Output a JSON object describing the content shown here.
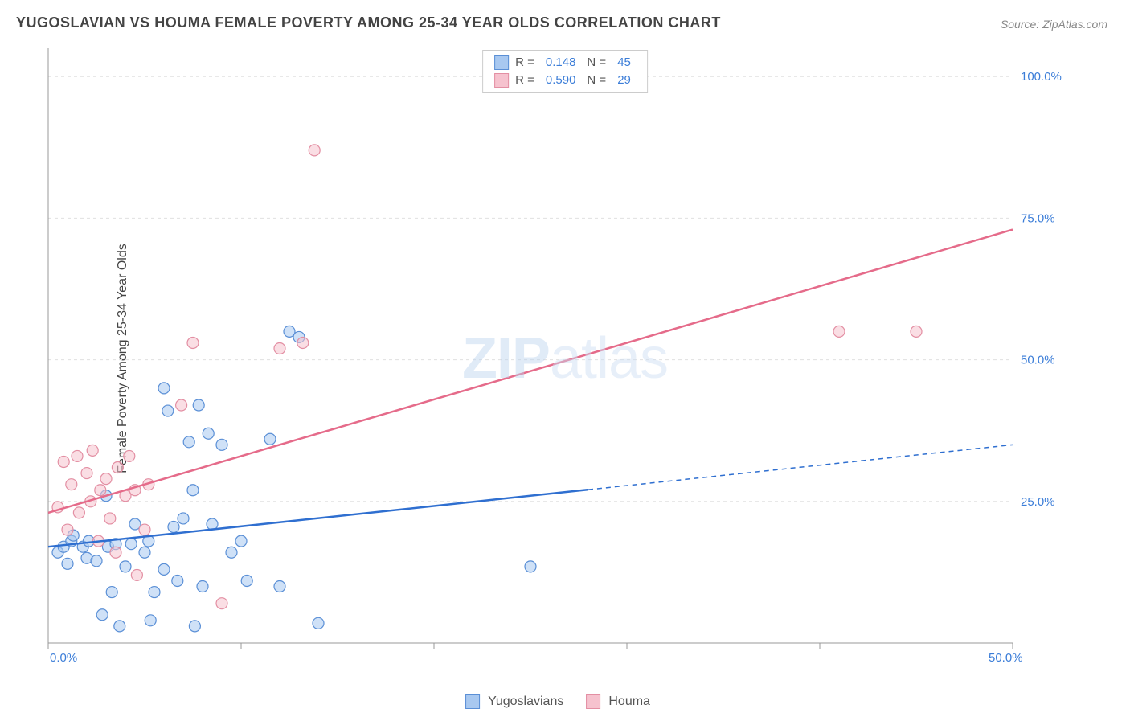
{
  "title": "YUGOSLAVIAN VS HOUMA FEMALE POVERTY AMONG 25-34 YEAR OLDS CORRELATION CHART",
  "source": "Source: ZipAtlas.com",
  "ylabel": "Female Poverty Among 25-34 Year Olds",
  "watermark_a": "ZIP",
  "watermark_b": "atlas",
  "chart": {
    "type": "scatter",
    "xlim": [
      0,
      50
    ],
    "ylim": [
      0,
      105
    ],
    "x_ticks": [
      0,
      10,
      20,
      30,
      40,
      50
    ],
    "y_ticks": [
      25,
      50,
      75,
      100
    ],
    "x_tick_labels": [
      "0.0%",
      "",
      "",
      "",
      "",
      "50.0%"
    ],
    "y_tick_labels": [
      "25.0%",
      "50.0%",
      "75.0%",
      "100.0%"
    ],
    "grid_color": "#e0e0e0",
    "background_color": "#ffffff",
    "axis_color": "#999999",
    "axis_label_color": "#3b7dd8",
    "marker_radius": 7,
    "marker_stroke_width": 1.2,
    "series": [
      {
        "name": "Yugoslavians",
        "color_fill": "#a8c8f0",
        "color_stroke": "#5a8fd6",
        "line_color": "#2f6fd0",
        "R": "0.148",
        "N": "45",
        "points": [
          [
            0.5,
            16
          ],
          [
            0.8,
            17
          ],
          [
            1.0,
            14
          ],
          [
            1.2,
            18
          ],
          [
            1.3,
            19
          ],
          [
            1.8,
            17
          ],
          [
            2.0,
            15
          ],
          [
            2.1,
            18
          ],
          [
            2.5,
            14.5
          ],
          [
            2.8,
            5
          ],
          [
            3.0,
            26
          ],
          [
            3.1,
            17
          ],
          [
            3.3,
            9
          ],
          [
            3.5,
            17.5
          ],
          [
            3.7,
            3
          ],
          [
            4.0,
            13.5
          ],
          [
            4.3,
            17.5
          ],
          [
            4.5,
            21
          ],
          [
            5.0,
            16
          ],
          [
            5.2,
            18
          ],
          [
            5.3,
            4
          ],
          [
            5.5,
            9
          ],
          [
            6.0,
            13
          ],
          [
            6.2,
            41
          ],
          [
            6.5,
            20.5
          ],
          [
            6.7,
            11
          ],
          [
            7.0,
            22
          ],
          [
            7.3,
            35.5
          ],
          [
            7.5,
            27
          ],
          [
            7.6,
            3
          ],
          [
            7.8,
            42
          ],
          [
            8.0,
            10
          ],
          [
            8.3,
            37
          ],
          [
            8.5,
            21
          ],
          [
            9.0,
            35
          ],
          [
            9.5,
            16
          ],
          [
            10.0,
            18
          ],
          [
            10.3,
            11
          ],
          [
            11.5,
            36
          ],
          [
            12.0,
            10
          ],
          [
            12.5,
            55
          ],
          [
            13,
            54
          ],
          [
            14,
            3.5
          ],
          [
            25,
            13.5
          ],
          [
            6.0,
            45
          ]
        ],
        "trend": {
          "x1": 0,
          "y1": 17,
          "x2": 28,
          "y2": 28,
          "x2_ext": 50,
          "y2_ext": 35,
          "dash_after": 28
        }
      },
      {
        "name": "Houma",
        "color_fill": "#f6c2ce",
        "color_stroke": "#e38fa3",
        "line_color": "#e56b8a",
        "R": "0.590",
        "N": "29",
        "points": [
          [
            0.5,
            24
          ],
          [
            0.8,
            32
          ],
          [
            1.0,
            20
          ],
          [
            1.2,
            28
          ],
          [
            1.5,
            33
          ],
          [
            1.6,
            23
          ],
          [
            2.0,
            30
          ],
          [
            2.2,
            25
          ],
          [
            2.3,
            34
          ],
          [
            2.6,
            18
          ],
          [
            2.7,
            27
          ],
          [
            3.0,
            29
          ],
          [
            3.2,
            22
          ],
          [
            3.5,
            16
          ],
          [
            3.6,
            31
          ],
          [
            4.0,
            26
          ],
          [
            4.2,
            33
          ],
          [
            4.5,
            27
          ],
          [
            4.6,
            12
          ],
          [
            5.0,
            20
          ],
          [
            5.2,
            28
          ],
          [
            6.9,
            42
          ],
          [
            7.5,
            53
          ],
          [
            9.0,
            7
          ],
          [
            12.0,
            52
          ],
          [
            13.2,
            53
          ],
          [
            13.8,
            87
          ],
          [
            41,
            55
          ],
          [
            45,
            55
          ]
        ],
        "trend": {
          "x1": 0,
          "y1": 23,
          "x2": 50,
          "y2": 73,
          "x2_ext": 50,
          "y2_ext": 73,
          "dash_after": 50
        }
      }
    ]
  },
  "legend_top": [
    {
      "swatch_fill": "#a8c8f0",
      "swatch_stroke": "#5a8fd6",
      "r_label": "R =",
      "r": "0.148",
      "n_label": "N =",
      "n": "45"
    },
    {
      "swatch_fill": "#f6c2ce",
      "swatch_stroke": "#e38fa3",
      "r_label": "R =",
      "r": "0.590",
      "n_label": "N =",
      "n": "29"
    }
  ],
  "legend_bottom": [
    {
      "swatch_fill": "#a8c8f0",
      "swatch_stroke": "#5a8fd6",
      "label": "Yugoslavians"
    },
    {
      "swatch_fill": "#f6c2ce",
      "swatch_stroke": "#e38fa3",
      "label": "Houma"
    }
  ]
}
